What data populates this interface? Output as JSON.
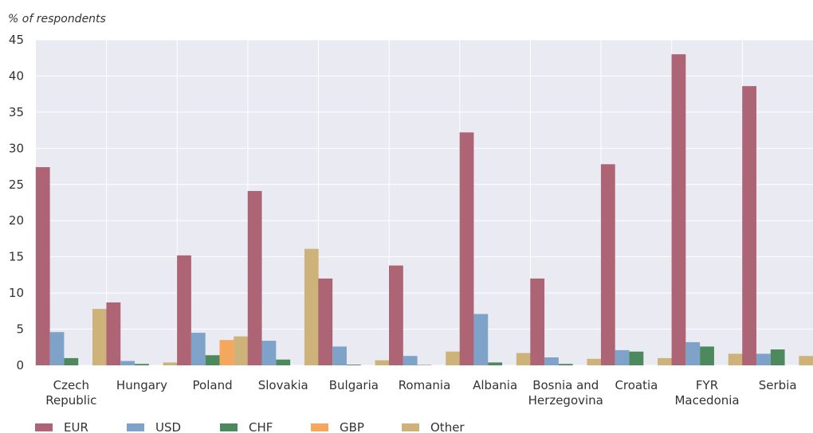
{
  "chart_data": {
    "type": "bar",
    "title": "",
    "xlabel": "",
    "ylabel": "% of respondents",
    "ylim": [
      0,
      45
    ],
    "yticks": [
      0,
      5,
      10,
      15,
      20,
      25,
      30,
      35,
      40,
      45
    ],
    "grid": true,
    "legend_position": "bottom-left",
    "categories": [
      [
        "Czech",
        "Republic"
      ],
      [
        "Hungary"
      ],
      [
        "Poland"
      ],
      [
        "Slovakia"
      ],
      [
        "Bulgaria"
      ],
      [
        "Romania"
      ],
      [
        "Albania"
      ],
      [
        "Bosnia and",
        "Herzegovina"
      ],
      [
        "Croatia"
      ],
      [
        "FYR",
        "Macedonia"
      ],
      [
        "Serbia"
      ]
    ],
    "series": [
      {
        "name": "EUR",
        "color": "#ad6475",
        "values": [
          27.4,
          8.7,
          15.2,
          24.1,
          12.0,
          13.8,
          32.2,
          12.0,
          27.8,
          43.0,
          38.6
        ]
      },
      {
        "name": "USD",
        "color": "#7fa3c8",
        "values": [
          4.6,
          0.6,
          4.5,
          3.4,
          2.6,
          1.3,
          7.1,
          1.1,
          2.1,
          3.2,
          1.6
        ]
      },
      {
        "name": "CHF",
        "color": "#4c8a5e",
        "values": [
          1.0,
          0.2,
          1.4,
          0.8,
          0.1,
          0.05,
          0.4,
          0.2,
          1.9,
          2.6,
          2.2
        ]
      },
      {
        "name": "GBP",
        "color": "#f6a75e",
        "values": [
          0,
          0,
          3.5,
          0,
          0,
          0,
          0,
          0,
          0,
          0,
          0
        ]
      },
      {
        "name": "Other",
        "color": "#cdb27a",
        "values": [
          7.8,
          0.4,
          4.0,
          16.1,
          0.7,
          1.9,
          1.7,
          0.9,
          1.0,
          1.6,
          1.3
        ]
      }
    ]
  }
}
